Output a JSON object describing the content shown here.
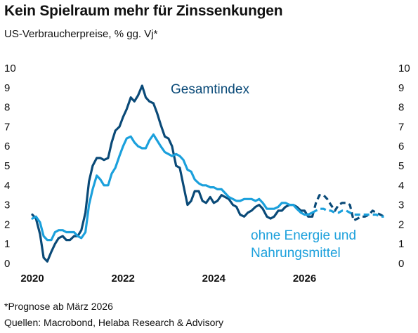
{
  "header": {
    "title": "Kein Spielraum mehr für Zinssenkungen",
    "subtitle": "US-Verbraucherpreise, % gg. Vj*"
  },
  "footer": {
    "note": "*Prognose ab März 2026",
    "sources": "Quellen: Macrobond, Helaba Research & Advisory"
  },
  "chart_data": {
    "type": "line",
    "ylim": [
      0,
      10
    ],
    "xlim": [
      2020.0,
      2027.85
    ],
    "yticks": [
      "0",
      "1",
      "2",
      "3",
      "4",
      "5",
      "6",
      "7",
      "8",
      "9",
      "10"
    ],
    "xticks": [
      {
        "value": 2020,
        "label": "2020"
      },
      {
        "value": 2022,
        "label": "2022"
      },
      {
        "value": 2024,
        "label": "2024"
      },
      {
        "value": 2026,
        "label": "2026"
      }
    ],
    "grid": false,
    "forecast_start": 2026.17,
    "annotations": [
      {
        "series": "Gesamtindex",
        "lines": [
          "Gesamtindex"
        ],
        "color": "#0a4a78"
      },
      {
        "series": "ohne Energie und Nahrungsmittel",
        "lines": [
          "ohne Energie und",
          "Nahrungsmittel"
        ],
        "color": "#1ba0dc"
      }
    ],
    "series": [
      {
        "name": "Gesamtindex",
        "color": "#0a4a78",
        "x": [
          2020.0,
          2020.08,
          2020.17,
          2020.25,
          2020.33,
          2020.42,
          2020.5,
          2020.58,
          2020.67,
          2020.75,
          2020.83,
          2020.92,
          2021.0,
          2021.08,
          2021.17,
          2021.25,
          2021.33,
          2021.42,
          2021.5,
          2021.58,
          2021.67,
          2021.75,
          2021.83,
          2021.92,
          2022.0,
          2022.08,
          2022.17,
          2022.25,
          2022.33,
          2022.42,
          2022.5,
          2022.58,
          2022.67,
          2022.75,
          2022.83,
          2022.92,
          2023.0,
          2023.08,
          2023.17,
          2023.25,
          2023.33,
          2023.42,
          2023.5,
          2023.58,
          2023.67,
          2023.75,
          2023.83,
          2023.92,
          2024.0,
          2024.08,
          2024.17,
          2024.25,
          2024.33,
          2024.42,
          2024.5,
          2024.58,
          2024.67,
          2024.75,
          2024.83,
          2024.92,
          2025.0,
          2025.08,
          2025.17,
          2025.25,
          2025.33,
          2025.42,
          2025.5,
          2025.58,
          2025.67,
          2025.75,
          2025.83,
          2025.92,
          2026.0,
          2026.08,
          2026.17,
          2026.25,
          2026.33,
          2026.42,
          2026.5,
          2026.58,
          2026.67,
          2026.75,
          2026.83,
          2026.92,
          2027.0,
          2027.08,
          2027.17,
          2027.25,
          2027.33,
          2027.42,
          2027.5,
          2027.58,
          2027.67,
          2027.75
        ],
        "y": [
          2.5,
          2.3,
          1.5,
          0.3,
          0.1,
          0.6,
          1.0,
          1.3,
          1.4,
          1.2,
          1.2,
          1.4,
          1.4,
          1.7,
          2.6,
          4.2,
          5.0,
          5.4,
          5.4,
          5.3,
          5.4,
          6.2,
          6.8,
          7.0,
          7.5,
          7.9,
          8.5,
          8.3,
          8.6,
          9.1,
          8.5,
          8.3,
          8.2,
          7.7,
          7.1,
          6.5,
          6.4,
          6.0,
          5.0,
          4.9,
          4.0,
          3.0,
          3.2,
          3.7,
          3.7,
          3.2,
          3.1,
          3.4,
          3.1,
          3.2,
          3.5,
          3.4,
          3.3,
          3.0,
          2.9,
          2.5,
          2.4,
          2.6,
          2.7,
          2.9,
          3.0,
          2.8,
          2.4,
          2.3,
          2.4,
          2.7,
          2.7,
          2.9,
          3.0,
          3.0,
          2.9,
          2.7,
          2.7,
          2.4,
          2.4,
          3.1,
          3.5,
          3.5,
          3.3,
          3.0,
          2.7,
          3.0,
          3.1,
          3.1,
          3.0,
          2.2,
          2.3,
          2.4,
          2.4,
          2.5,
          2.7,
          2.6,
          2.5,
          2.4
        ]
      },
      {
        "name": "ohne Energie und Nahrungsmittel",
        "color": "#1ba0dc",
        "x": [
          2020.0,
          2020.08,
          2020.17,
          2020.25,
          2020.33,
          2020.42,
          2020.5,
          2020.58,
          2020.67,
          2020.75,
          2020.83,
          2020.92,
          2021.0,
          2021.08,
          2021.17,
          2021.25,
          2021.33,
          2021.42,
          2021.5,
          2021.58,
          2021.67,
          2021.75,
          2021.83,
          2021.92,
          2022.0,
          2022.08,
          2022.17,
          2022.25,
          2022.33,
          2022.42,
          2022.5,
          2022.58,
          2022.67,
          2022.75,
          2022.83,
          2022.92,
          2023.0,
          2023.08,
          2023.17,
          2023.25,
          2023.33,
          2023.42,
          2023.5,
          2023.58,
          2023.67,
          2023.75,
          2023.83,
          2023.92,
          2024.0,
          2024.08,
          2024.17,
          2024.25,
          2024.33,
          2024.42,
          2024.5,
          2024.58,
          2024.67,
          2024.75,
          2024.83,
          2024.92,
          2025.0,
          2025.08,
          2025.17,
          2025.25,
          2025.33,
          2025.42,
          2025.5,
          2025.58,
          2025.67,
          2025.75,
          2025.83,
          2025.92,
          2026.0,
          2026.08,
          2026.17,
          2026.25,
          2026.33,
          2026.42,
          2026.5,
          2026.58,
          2026.67,
          2026.75,
          2026.83,
          2026.92,
          2027.0,
          2027.08,
          2027.17,
          2027.25,
          2027.33,
          2027.42,
          2027.5,
          2027.58,
          2027.67,
          2027.75
        ],
        "y": [
          2.3,
          2.4,
          2.1,
          1.4,
          1.2,
          1.2,
          1.6,
          1.7,
          1.7,
          1.6,
          1.6,
          1.6,
          1.4,
          1.3,
          1.6,
          3.0,
          3.8,
          4.5,
          4.3,
          4.0,
          4.0,
          4.6,
          4.9,
          5.5,
          6.0,
          6.4,
          6.5,
          6.2,
          6.0,
          5.9,
          5.9,
          6.3,
          6.6,
          6.3,
          6.0,
          5.7,
          5.6,
          5.5,
          5.6,
          5.5,
          5.3,
          4.8,
          4.7,
          4.3,
          4.1,
          4.0,
          4.0,
          3.9,
          3.9,
          3.8,
          3.8,
          3.6,
          3.4,
          3.3,
          3.2,
          3.2,
          3.3,
          3.3,
          3.3,
          3.2,
          3.3,
          3.1,
          2.8,
          2.8,
          2.8,
          2.9,
          3.1,
          3.1,
          3.0,
          3.0,
          2.8,
          2.6,
          2.5,
          2.5,
          2.6,
          2.7,
          2.8,
          2.8,
          2.7,
          2.7,
          2.6,
          2.6,
          2.7,
          2.7,
          2.6,
          2.5,
          2.5,
          2.5,
          2.5,
          2.5,
          2.5,
          2.5,
          2.4,
          2.4
        ]
      }
    ]
  }
}
